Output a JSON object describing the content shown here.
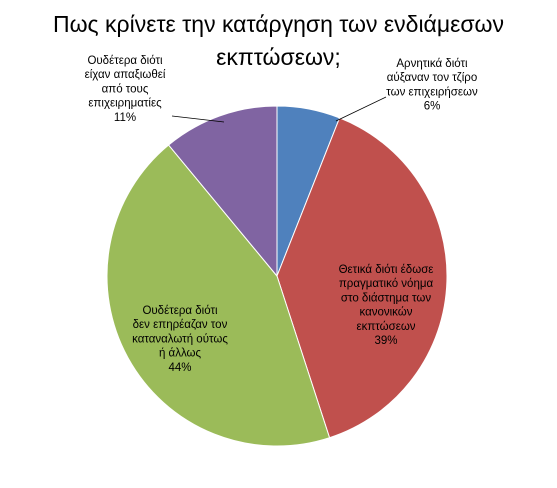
{
  "chart_data": {
    "type": "pie",
    "title": "Πως κρίνετε την κατάργηση των ενδιάμεσων εκπτώσεων;",
    "slices": [
      {
        "name": "Αρνητικά διότι αύξαναν τον τζίρο των επιχειρήσεων",
        "label_lines": [
          "Αρνητικά διότι",
          "αύξαναν τον τζίρο",
          "των επιχειρήσεων"
        ],
        "value": 6,
        "percent_label": "6%",
        "color": "#4F81BD"
      },
      {
        "name": "Θετικά διότι έδωσε πραγματικό νόημα στο διάστημα των κανονικών εκπτώσεων",
        "label_lines": [
          "Θετικά διότι έδωσε",
          "πραγματικό νόημα",
          "στο διάστημα των",
          "κανονικών",
          "εκπτώσεων"
        ],
        "value": 39,
        "percent_label": "39%",
        "color": "#C0504D"
      },
      {
        "name": "Ουδέτερα διότι δεν επηρέαζαν τον καταναλωτή ούτως ή άλλως",
        "label_lines": [
          "Ουδέτερα διότι",
          "δεν επηρέαζαν τον",
          "καταναλωτή ούτως",
          "ή άλλως"
        ],
        "value": 44,
        "percent_label": "44%",
        "color": "#9BBB59"
      },
      {
        "name": "Ουδέτερα διότι είχαν απαξιωθεί από τους επιχειρηματίες",
        "label_lines": [
          "Ουδέτερα διότι",
          "είχαν απαξιωθεί",
          "από τους",
          "επιχειρηματίες"
        ],
        "value": 11,
        "percent_label": "11%",
        "color": "#8064A2"
      }
    ],
    "start_angle_deg": 0,
    "direction": "clockwise",
    "legend": "none"
  }
}
